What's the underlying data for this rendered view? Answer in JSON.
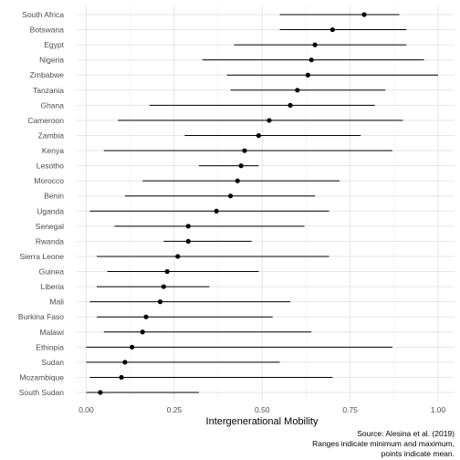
{
  "chart_data": {
    "type": "dot-range",
    "xlabel": "Intergenerational Mobility",
    "ylabel": "",
    "xlim": [
      -0.03,
      1.03
    ],
    "xticks": [
      0.0,
      0.25,
      0.5,
      0.75,
      1.0
    ],
    "xtick_labels": [
      "0.00",
      "0.25",
      "0.50",
      "0.75",
      "1.00"
    ],
    "grid": true,
    "caption": [
      "Source: Alesina et al. (2019)",
      "Ranges indicate minimum and maximum,",
      "points indicate mean."
    ],
    "countries": [
      {
        "name": "South Africa",
        "min": 0.55,
        "mean": 0.79,
        "max": 0.89
      },
      {
        "name": "Botswana",
        "min": 0.55,
        "mean": 0.7,
        "max": 0.91
      },
      {
        "name": "Egypt",
        "min": 0.42,
        "mean": 0.65,
        "max": 0.91
      },
      {
        "name": "Nigeria",
        "min": 0.33,
        "mean": 0.64,
        "max": 0.96
      },
      {
        "name": "Zmbabwe",
        "min": 0.4,
        "mean": 0.63,
        "max": 1.0
      },
      {
        "name": "Tanzania",
        "min": 0.41,
        "mean": 0.6,
        "max": 0.85
      },
      {
        "name": "Ghana",
        "min": 0.18,
        "mean": 0.58,
        "max": 0.82
      },
      {
        "name": "Cameroon",
        "min": 0.09,
        "mean": 0.52,
        "max": 0.9
      },
      {
        "name": "Zambia",
        "min": 0.28,
        "mean": 0.49,
        "max": 0.78
      },
      {
        "name": "Kenya",
        "min": 0.05,
        "mean": 0.45,
        "max": 0.87
      },
      {
        "name": "Lesotho",
        "min": 0.32,
        "mean": 0.44,
        "max": 0.49
      },
      {
        "name": "Morocco",
        "min": 0.16,
        "mean": 0.43,
        "max": 0.72
      },
      {
        "name": "Benin",
        "min": 0.11,
        "mean": 0.41,
        "max": 0.65
      },
      {
        "name": "Uganda",
        "min": 0.01,
        "mean": 0.37,
        "max": 0.69
      },
      {
        "name": "Senegal",
        "min": 0.08,
        "mean": 0.29,
        "max": 0.62
      },
      {
        "name": "Rwanda",
        "min": 0.22,
        "mean": 0.29,
        "max": 0.47
      },
      {
        "name": "Sierra Leone",
        "min": 0.03,
        "mean": 0.26,
        "max": 0.69
      },
      {
        "name": "Guinea",
        "min": 0.06,
        "mean": 0.23,
        "max": 0.49
      },
      {
        "name": "Liberia",
        "min": 0.03,
        "mean": 0.22,
        "max": 0.35
      },
      {
        "name": "Mali",
        "min": 0.01,
        "mean": 0.21,
        "max": 0.58
      },
      {
        "name": "Burkina Faso",
        "min": 0.03,
        "mean": 0.17,
        "max": 0.53
      },
      {
        "name": "Malawi",
        "min": 0.05,
        "mean": 0.16,
        "max": 0.64
      },
      {
        "name": "Ethiopia",
        "min": 0.0,
        "mean": 0.13,
        "max": 0.87
      },
      {
        "name": "Sudan",
        "min": 0.0,
        "mean": 0.11,
        "max": 0.55
      },
      {
        "name": "Mozambique",
        "min": 0.01,
        "mean": 0.1,
        "max": 0.7
      },
      {
        "name": "South Sudan",
        "min": 0.0,
        "mean": 0.04,
        "max": 0.32
      }
    ]
  }
}
